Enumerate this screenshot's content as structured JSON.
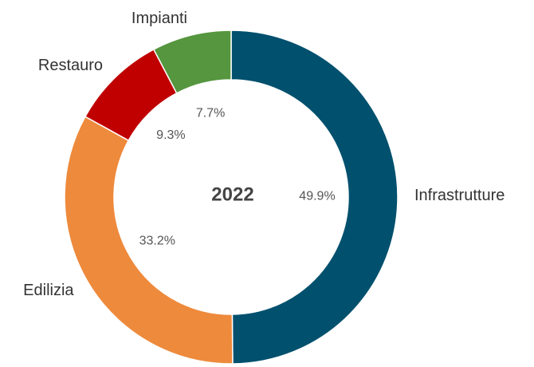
{
  "chart_data": {
    "type": "donut",
    "title": "2022",
    "categories": [
      "Infrastrutture",
      "Edilizia",
      "Restauro",
      "Impianti"
    ],
    "values": [
      49.9,
      33.2,
      9.3,
      7.7
    ],
    "value_labels": [
      "49.9%",
      "33.2%",
      "9.3%",
      "7.7%"
    ],
    "colors": [
      "#00506e",
      "#ee8a3c",
      "#c00000",
      "#55963f"
    ]
  }
}
